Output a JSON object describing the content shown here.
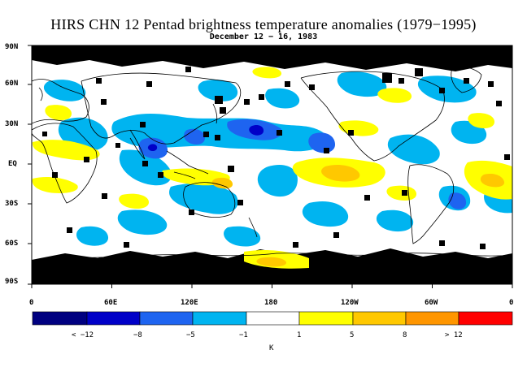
{
  "title": "HIRS CHN 12 Pentad brightness temperature anomalies (1979−1995)",
  "subtitle": "December 12 − 16, 1983",
  "lat_labels": [
    "90N",
    "60N",
    "30N",
    "EQ",
    "30S",
    "60S",
    "90S"
  ],
  "lon_labels": [
    "0",
    "60E",
    "120E",
    "180",
    "120W",
    "60W",
    "0"
  ],
  "colorbar": {
    "colors": [
      "#000080",
      "#0000c8",
      "#1e64f0",
      "#00b4f0",
      "#ffffff",
      "#ffff00",
      "#ffc800",
      "#ff9600",
      "#ff0000"
    ],
    "labels": [
      "< −12",
      "−8",
      "−5",
      "−1",
      "1",
      "5",
      "8",
      "> 12"
    ],
    "unit": "K"
  },
  "map": {
    "missing_color": "#000000",
    "lat_range": [
      -90,
      90
    ],
    "lon_range": [
      0,
      360
    ]
  }
}
